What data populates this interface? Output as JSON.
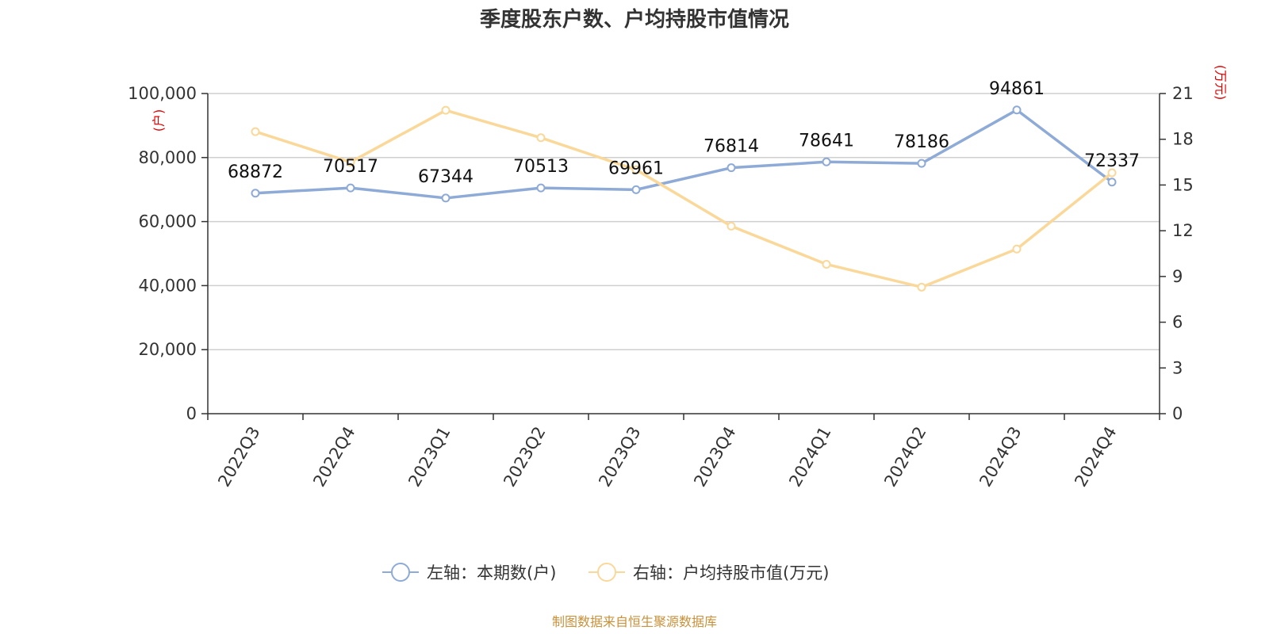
{
  "chart_data": {
    "type": "line",
    "title": "季度股东户数、户均持股市值情况",
    "categories": [
      "2022Q3",
      "2022Q4",
      "2023Q1",
      "2023Q2",
      "2023Q3",
      "2023Q4",
      "2024Q1",
      "2024Q2",
      "2024Q3",
      "2024Q4"
    ],
    "series": [
      {
        "name": "左轴：本期数(户)",
        "axis": "left",
        "color": "#8eaad6",
        "values": [
          68872,
          70517,
          67344,
          70513,
          69961,
          76814,
          78641,
          78186,
          94861,
          72337
        ],
        "labels": [
          "68872",
          "70517",
          "67344",
          "70513",
          "69961",
          "76814",
          "78641",
          "78186",
          "94861",
          "72337"
        ]
      },
      {
        "name": "右轴：户均持股市值(万元)",
        "axis": "right",
        "color": "#fad89a",
        "values": [
          18.5,
          16.5,
          19.9,
          18.1,
          16.0,
          12.3,
          9.8,
          8.3,
          10.8,
          15.8
        ]
      }
    ],
    "left_axis": {
      "unit": "(户)",
      "min": 0,
      "max": 100000,
      "ticks": [
        0,
        20000,
        40000,
        60000,
        80000,
        100000
      ],
      "tick_labels": [
        "0",
        "20,000",
        "40,000",
        "60,000",
        "80,000",
        "100,000"
      ]
    },
    "right_axis": {
      "unit": "(万元)",
      "min": 0,
      "max": 21,
      "ticks": [
        0,
        3,
        6,
        9,
        12,
        15,
        18,
        21
      ],
      "tick_labels": [
        "0",
        "3",
        "6",
        "9",
        "12",
        "15",
        "18",
        "21"
      ]
    },
    "grid": true,
    "legend_position": "bottom-center",
    "source_text": "制图数据来自恒生聚源数据库"
  }
}
